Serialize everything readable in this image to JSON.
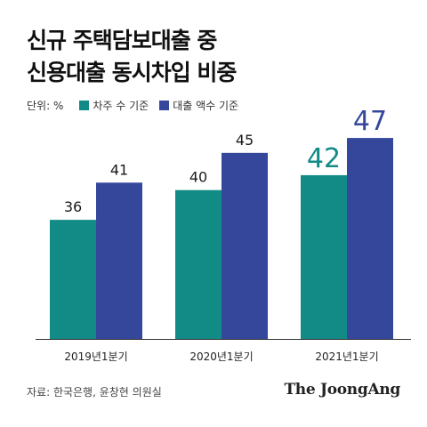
{
  "title_line1": "신규 주택담보대출 중",
  "title_line2": "신용대출 동시차입 비중",
  "source": "자료: 한국은행, 윤창현 의원실",
  "brand": "The JoongAng",
  "colors": {
    "series1": "#128a86",
    "series2": "#34479b",
    "axis": "#333333"
  },
  "chart_data": {
    "type": "bar",
    "unit_label": "단위: %",
    "categories": [
      "2019년1분기",
      "2020년1분기",
      "2021년1분기"
    ],
    "series": [
      {
        "name": "차주 수 기준",
        "values": [
          36,
          40,
          42
        ]
      },
      {
        "name": "대출 액수 기준",
        "values": [
          41,
          45,
          47
        ]
      }
    ],
    "ylim": [
      20,
      50
    ],
    "grid": false,
    "legend_position": "top-left",
    "highlight_category": "2021년1분기"
  }
}
